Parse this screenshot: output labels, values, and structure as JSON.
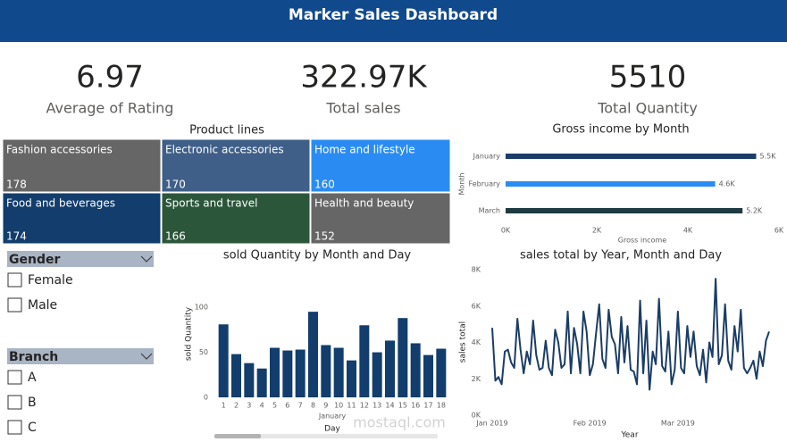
{
  "header": {
    "title": "Marker Sales Dashboard"
  },
  "kpis": [
    {
      "value": "6.97",
      "label": "Average of Rating"
    },
    {
      "value": "322.97K",
      "label": "Total sales"
    },
    {
      "value": "5510",
      "label": "Total Quantity"
    }
  ],
  "slicers": [
    {
      "title": "Gender",
      "options": [
        "Female",
        "Male"
      ]
    },
    {
      "title": "Branch",
      "options": [
        "A",
        "B",
        "C"
      ]
    }
  ],
  "watermark": "mostaql.com",
  "chart_data": [
    {
      "type": "treemap",
      "title": "Product lines",
      "categories": [
        "Fashion accessories",
        "Electronic accessories",
        "Home and lifestyle",
        "Food and beverages",
        "Sports and travel",
        "Health and beauty"
      ],
      "values": [
        178,
        170,
        160,
        174,
        166,
        152
      ],
      "colors": [
        "#666666",
        "#3f5f88",
        "#2a8cf2",
        "#123d6c",
        "#2c563a",
        "#666666"
      ]
    },
    {
      "type": "barh",
      "title": "Gross income by Month",
      "categories": [
        "January",
        "February",
        "March"
      ],
      "values": [
        5500,
        4600,
        5200
      ],
      "value_labels": [
        "5.5K",
        "4.6K",
        "5.2K"
      ],
      "colors": [
        "#1b3d66",
        "#2a8cf2",
        "#1d3b40"
      ],
      "xlim": [
        0,
        6000
      ],
      "xticks": [
        {
          "value": 0,
          "label": "0K"
        },
        {
          "value": 2000,
          "label": "2K"
        },
        {
          "value": 4000,
          "label": "4K"
        },
        {
          "value": 6000,
          "label": "6K"
        }
      ],
      "xlabel": "Gross income",
      "ylabel": "Month"
    },
    {
      "type": "bar",
      "title": "sold Quantity by Month and Day",
      "categories": [
        "1",
        "2",
        "3",
        "4",
        "5",
        "6",
        "7",
        "8",
        "9",
        "10",
        "11",
        "12",
        "13",
        "14",
        "15",
        "16",
        "17",
        "18"
      ],
      "values": [
        81,
        48,
        38,
        32,
        55,
        52,
        53,
        95,
        58,
        55,
        41,
        80,
        50,
        63,
        88,
        60,
        47,
        54
      ],
      "color": "#123d6c",
      "ylim": [
        0,
        110
      ],
      "yticks": [
        0,
        50,
        100
      ],
      "group_label": "January",
      "xlabel": "Day",
      "ylabel": "sold Quantity"
    },
    {
      "type": "line",
      "title": "sales total by Year, Month and Day",
      "values": [
        4800,
        1900,
        2100,
        1700,
        3500,
        3600,
        2900,
        2600,
        5300,
        3600,
        2300,
        3500,
        2800,
        5200,
        3300,
        2500,
        2600,
        4100,
        2600,
        2200,
        4700,
        4000,
        2600,
        2800,
        5700,
        2300,
        4800,
        3900,
        2300,
        5700,
        4600,
        2200,
        2800,
        4500,
        6100,
        3100,
        2600,
        5800,
        4300,
        3900,
        2300,
        5400,
        2900,
        4900,
        2500,
        2400,
        1700,
        6300,
        2300,
        5200,
        1400,
        3500,
        2800,
        6400,
        2700,
        2400,
        4600,
        1700,
        2500,
        5700,
        2600,
        2300,
        4900,
        3200,
        4600,
        2700,
        2200,
        3600,
        1800,
        4000,
        3200,
        7500,
        2800,
        3300,
        6100,
        3000,
        2500,
        4900,
        3500,
        5800,
        2600,
        2300,
        2600,
        3000,
        2000,
        3500,
        2700,
        4100,
        4600
      ],
      "color": "#1b3d66",
      "xlim": [
        0,
        88
      ],
      "xticks": [
        {
          "value": 0,
          "label": "Jan 2019"
        },
        {
          "value": 31,
          "label": "Feb 2019"
        },
        {
          "value": 59,
          "label": "Mar 2019"
        }
      ],
      "ylim": [
        0,
        8000
      ],
      "yticks": [
        {
          "value": 0,
          "label": "0K"
        },
        {
          "value": 2000,
          "label": "2K"
        },
        {
          "value": 4000,
          "label": "4K"
        },
        {
          "value": 6000,
          "label": "6K"
        },
        {
          "value": 8000,
          "label": "8K"
        }
      ],
      "xlabel": "Year",
      "ylabel": "sales total"
    }
  ]
}
